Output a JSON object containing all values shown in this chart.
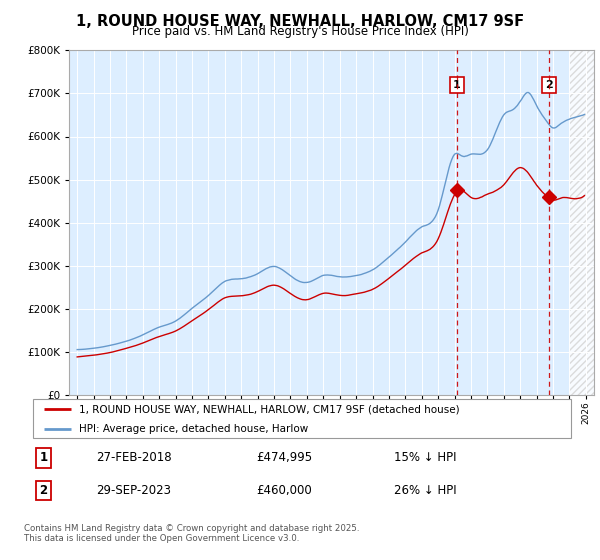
{
  "title": "1, ROUND HOUSE WAY, NEWHALL, HARLOW, CM17 9SF",
  "subtitle": "Price paid vs. HM Land Registry's House Price Index (HPI)",
  "property_label": "1, ROUND HOUSE WAY, NEWHALL, HARLOW, CM17 9SF (detached house)",
  "hpi_label": "HPI: Average price, detached house, Harlow",
  "footnote": "Contains HM Land Registry data © Crown copyright and database right 2025.\nThis data is licensed under the Open Government Licence v3.0.",
  "sale1_date": "27-FEB-2018",
  "sale1_price": "£474,995",
  "sale1_hpi": "15% ↓ HPI",
  "sale2_date": "29-SEP-2023",
  "sale2_price": "£460,000",
  "sale2_hpi": "26% ↓ HPI",
  "property_color": "#cc0000",
  "hpi_color": "#6699cc",
  "background_color": "#ddeeff",
  "sale1_x": 2018.15,
  "sale2_x": 2023.75,
  "sale1_y": 474995,
  "sale2_y": 460000,
  "ylim": [
    0,
    800000
  ],
  "xlim": [
    1994.5,
    2026.5
  ]
}
